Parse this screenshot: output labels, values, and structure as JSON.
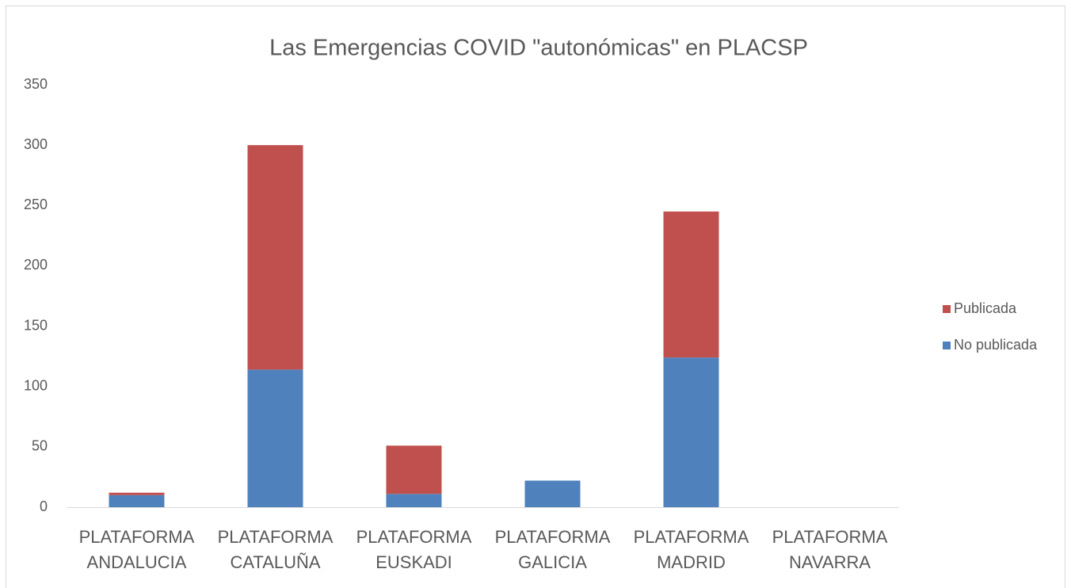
{
  "chart_data": {
    "type": "bar",
    "stacked": true,
    "title": "Las Emergencias COVID \"autonómicas\" en PLACSP",
    "categories": [
      "PLATAFORMA ANDALUCIA",
      "PLATAFORMA CATALUÑA",
      "PLATAFORMA EUSKADI",
      "PLATAFORMA GALICIA",
      "PLATAFORMA MADRID",
      "PLATAFORMA NAVARRA"
    ],
    "series": [
      {
        "name": "No publicada",
        "color": "#4f81bd",
        "values": [
          10,
          114,
          11,
          22,
          124,
          0
        ]
      },
      {
        "name": "Publicada",
        "color": "#c0504d",
        "values": [
          2,
          186,
          40,
          0,
          121,
          0
        ]
      }
    ],
    "ylim": [
      0,
      350
    ],
    "yticks": [
      0,
      50,
      100,
      150,
      200,
      250,
      300,
      350
    ],
    "grid": false,
    "legend": "right"
  }
}
